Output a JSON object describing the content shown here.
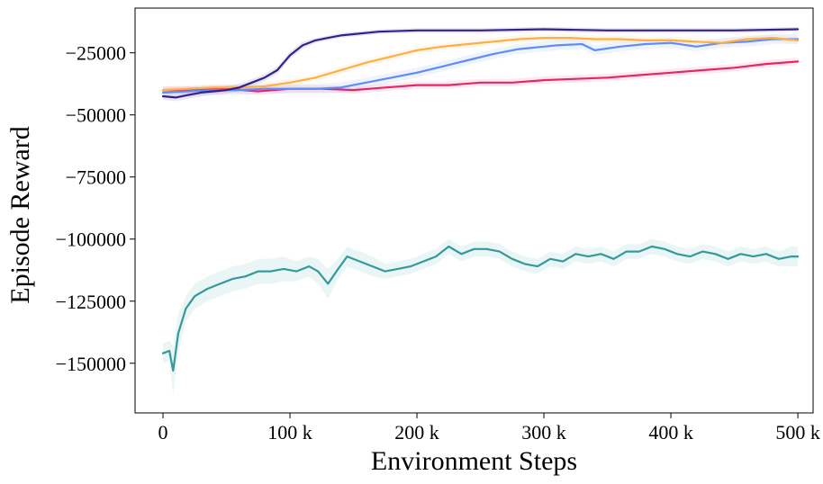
{
  "chart_data": {
    "type": "line",
    "title": "",
    "xlabel": "Environment Steps",
    "ylabel": "Episode Reward",
    "xlim": [
      -22000,
      512000
    ],
    "ylim": [
      -170000,
      -7000
    ],
    "x_ticks": [
      0,
      100000,
      200000,
      300000,
      400000,
      500000
    ],
    "x_tick_labels": [
      "0",
      "100 k",
      "200 k",
      "300 k",
      "400 k",
      "500 k"
    ],
    "y_ticks": [
      -25000,
      -50000,
      -75000,
      -100000,
      -125000,
      -150000
    ],
    "y_tick_labels": [
      "−25000",
      "−50000",
      "−75000",
      "−100000",
      "−125000",
      "−150000"
    ],
    "grid": false,
    "legend": "none",
    "series": [
      {
        "name": "series-teal",
        "color": "#35999A",
        "band_color": "#35999A",
        "x": [
          0,
          5000,
          8000,
          12000,
          18000,
          25000,
          35000,
          45000,
          55000,
          65000,
          75000,
          85000,
          95000,
          105000,
          115000,
          122000,
          130000,
          138000,
          145000,
          155000,
          165000,
          175000,
          185000,
          195000,
          205000,
          215000,
          225000,
          235000,
          245000,
          255000,
          265000,
          275000,
          285000,
          295000,
          305000,
          315000,
          325000,
          335000,
          345000,
          355000,
          365000,
          375000,
          385000,
          395000,
          405000,
          415000,
          425000,
          435000,
          445000,
          455000,
          465000,
          475000,
          485000,
          495000,
          500000
        ],
        "y": [
          -146000,
          -145000,
          -153000,
          -138000,
          -128000,
          -123000,
          -120000,
          -118000,
          -116000,
          -115000,
          -113000,
          -113000,
          -112000,
          -113000,
          -111000,
          -113000,
          -118000,
          -112000,
          -107000,
          -109000,
          -111000,
          -113000,
          -112000,
          -111000,
          -109000,
          -107000,
          -103000,
          -106000,
          -104000,
          -104000,
          -105000,
          -108000,
          -110000,
          -111000,
          -108000,
          -109000,
          -106000,
          -107000,
          -106000,
          -108000,
          -105000,
          -105000,
          -103000,
          -104000,
          -106000,
          -107000,
          -105000,
          -106000,
          -108000,
          -106000,
          -107000,
          -106000,
          -108000,
          -107000,
          -107000
        ],
        "band_lower": [
          -150000,
          -149000,
          -163000,
          -146000,
          -133000,
          -128000,
          -125000,
          -123000,
          -121000,
          -120000,
          -118000,
          -118000,
          -117000,
          -117000,
          -115000,
          -118000,
          -124000,
          -116000,
          -111000,
          -113000,
          -115000,
          -116000,
          -115000,
          -114000,
          -112000,
          -110000,
          -106000,
          -109000,
          -107000,
          -107000,
          -108000,
          -111000,
          -113000,
          -114000,
          -111000,
          -112000,
          -109000,
          -110000,
          -109000,
          -111000,
          -108000,
          -108000,
          -106000,
          -107000,
          -109000,
          -110000,
          -108000,
          -109000,
          -111000,
          -109000,
          -110000,
          -109000,
          -111000,
          -111000,
          -111000
        ],
        "band_upper": [
          -142000,
          -141000,
          -143000,
          -130000,
          -123000,
          -118000,
          -115000,
          -113000,
          -111000,
          -110000,
          -108000,
          -108000,
          -107000,
          -109000,
          -107000,
          -108000,
          -112000,
          -108000,
          -103000,
          -105000,
          -107000,
          -110000,
          -109000,
          -108000,
          -106000,
          -104000,
          -100000,
          -103000,
          -101000,
          -101000,
          -102000,
          -105000,
          -107000,
          -108000,
          -105000,
          -106000,
          -103000,
          -104000,
          -103000,
          -105000,
          -102000,
          -102000,
          -100000,
          -101000,
          -103000,
          -104000,
          -102000,
          -103000,
          -105000,
          -103000,
          -104000,
          -103000,
          -105000,
          -103000,
          -103000
        ]
      },
      {
        "name": "series-pink",
        "color": "#E4266E",
        "band_color": "#E4266E",
        "x": [
          0,
          25000,
          50000,
          75000,
          100000,
          125000,
          150000,
          175000,
          200000,
          225000,
          250000,
          275000,
          300000,
          325000,
          350000,
          375000,
          400000,
          425000,
          450000,
          475000,
          500000
        ],
        "y": [
          -40000,
          -40000,
          -39500,
          -40500,
          -39500,
          -39500,
          -40000,
          -39000,
          -38000,
          -38000,
          -37000,
          -37000,
          -36000,
          -35500,
          -35000,
          -34000,
          -33000,
          -32000,
          -31000,
          -29500,
          -28500
        ],
        "band_lower": [
          -41500,
          -41500,
          -41000,
          -42000,
          -41000,
          -41000,
          -41500,
          -40500,
          -39500,
          -39500,
          -38500,
          -38500,
          -37500,
          -37000,
          -36500,
          -35500,
          -34500,
          -33500,
          -32500,
          -31000,
          -30000
        ],
        "band_upper": [
          -38500,
          -38500,
          -38000,
          -39000,
          -38000,
          -38000,
          -38500,
          -37500,
          -36500,
          -36500,
          -35500,
          -35500,
          -34500,
          -34000,
          -33500,
          -32500,
          -31500,
          -30500,
          -29500,
          -28000,
          -27000
        ]
      },
      {
        "name": "series-blue",
        "color": "#5E8CF9",
        "band_color": "#5E8CF9",
        "x": [
          0,
          20000,
          40000,
          60000,
          80000,
          100000,
          120000,
          140000,
          160000,
          180000,
          200000,
          220000,
          240000,
          260000,
          280000,
          300000,
          310000,
          330000,
          340000,
          360000,
          380000,
          400000,
          420000,
          440000,
          460000,
          480000,
          500000
        ],
        "y": [
          -41000,
          -40500,
          -40000,
          -40000,
          -39500,
          -39500,
          -39500,
          -39000,
          -37000,
          -35000,
          -33000,
          -30500,
          -28000,
          -25500,
          -23500,
          -22500,
          -22000,
          -21500,
          -24000,
          -22500,
          -21500,
          -21000,
          -22500,
          -21000,
          -20500,
          -19500,
          -19500
        ],
        "band_lower": [
          -43000,
          -42500,
          -42000,
          -42000,
          -41500,
          -41500,
          -41500,
          -41000,
          -39000,
          -37000,
          -35000,
          -32500,
          -30000,
          -27500,
          -25500,
          -24500,
          -24000,
          -23500,
          -26000,
          -24500,
          -23500,
          -23000,
          -24500,
          -23000,
          -22500,
          -21500,
          -21500
        ],
        "band_upper": [
          -39000,
          -38500,
          -38000,
          -38000,
          -37500,
          -37500,
          -37500,
          -37000,
          -35000,
          -33000,
          -31000,
          -28500,
          -26000,
          -23500,
          -21500,
          -20500,
          -20000,
          -19500,
          -22000,
          -20500,
          -19500,
          -19000,
          -20500,
          -19000,
          -18500,
          -17500,
          -17500
        ]
      },
      {
        "name": "series-orange",
        "color": "#FEAE43",
        "band_color": "#FEAE43",
        "x": [
          0,
          20000,
          40000,
          60000,
          80000,
          100000,
          120000,
          140000,
          160000,
          180000,
          200000,
          220000,
          240000,
          260000,
          280000,
          300000,
          320000,
          340000,
          360000,
          380000,
          400000,
          420000,
          440000,
          460000,
          480000,
          500000
        ],
        "y": [
          -40000,
          -39500,
          -39000,
          -39000,
          -38500,
          -37000,
          -35000,
          -32000,
          -29000,
          -26500,
          -24000,
          -22500,
          -21500,
          -20500,
          -19500,
          -19000,
          -19000,
          -19500,
          -19500,
          -20000,
          -20000,
          -20500,
          -21000,
          -19500,
          -19000,
          -20000
        ],
        "band_lower": [
          -41500,
          -41000,
          -40500,
          -40500,
          -40000,
          -38500,
          -36500,
          -33500,
          -30500,
          -28000,
          -25500,
          -24000,
          -23000,
          -22000,
          -21000,
          -20500,
          -20500,
          -21000,
          -21000,
          -21500,
          -21500,
          -22000,
          -22500,
          -21000,
          -20500,
          -21500
        ],
        "band_upper": [
          -38500,
          -38000,
          -37500,
          -37500,
          -37000,
          -35500,
          -33500,
          -30500,
          -27500,
          -25000,
          -22500,
          -21000,
          -20000,
          -19000,
          -18000,
          -17500,
          -17500,
          -18000,
          -18000,
          -18500,
          -18500,
          -19000,
          -19500,
          -18000,
          -17500,
          -18500
        ]
      },
      {
        "name": "series-navy",
        "color": "#332288",
        "band_color": "#332288",
        "x": [
          0,
          10000,
          20000,
          30000,
          40000,
          50000,
          60000,
          70000,
          80000,
          90000,
          95000,
          100000,
          110000,
          120000,
          130000,
          140000,
          150000,
          170000,
          200000,
          250000,
          300000,
          350000,
          400000,
          450000,
          500000
        ],
        "y": [
          -42500,
          -43000,
          -42000,
          -41000,
          -40500,
          -40000,
          -39000,
          -37000,
          -35000,
          -32000,
          -29000,
          -26000,
          -22000,
          -20000,
          -19000,
          -18000,
          -17500,
          -16500,
          -16000,
          -16000,
          -15500,
          -16000,
          -16000,
          -16000,
          -15500
        ],
        "band_lower": [
          -44000,
          -44500,
          -43500,
          -42500,
          -42000,
          -41500,
          -40500,
          -38500,
          -36500,
          -33500,
          -30500,
          -27500,
          -23500,
          -21000,
          -20000,
          -19000,
          -18500,
          -17500,
          -17000,
          -17000,
          -16500,
          -17000,
          -17000,
          -17000,
          -16500
        ],
        "band_upper": [
          -41000,
          -41500,
          -40500,
          -39500,
          -39000,
          -38500,
          -37500,
          -35500,
          -33500,
          -30500,
          -27500,
          -24500,
          -20500,
          -19000,
          -18000,
          -17000,
          -16500,
          -15500,
          -15000,
          -15000,
          -14500,
          -15000,
          -15000,
          -15000,
          -14500
        ]
      }
    ]
  }
}
